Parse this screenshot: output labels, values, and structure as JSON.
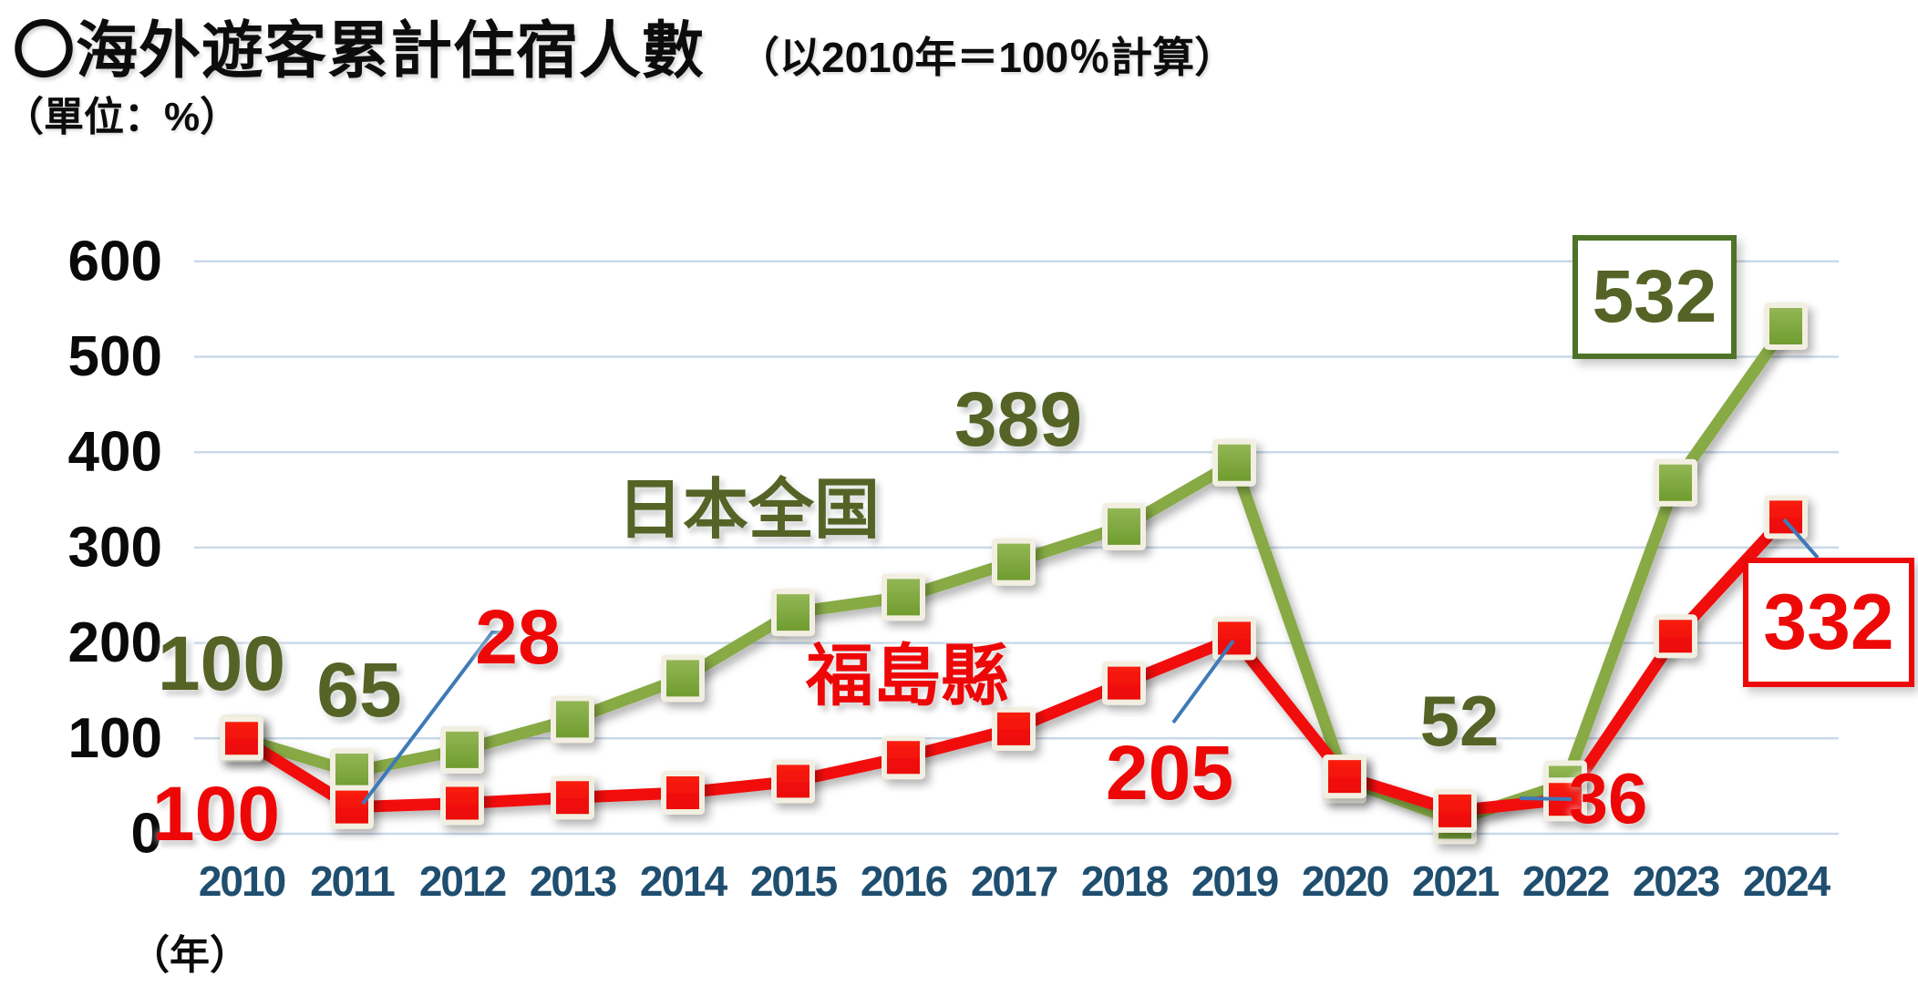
{
  "header": {
    "title": "〇海外遊客累計住宿人數",
    "subtitle": "（以2010年＝100％計算）",
    "unit_label": "（單位：%）"
  },
  "axes": {
    "x_unit_label": "（年）"
  },
  "chart_data": {
    "type": "line",
    "title": "海外遊客累計住宿人數（以2010年＝100％計算）",
    "categories": [
      "2010",
      "2011",
      "2012",
      "2013",
      "2014",
      "2015",
      "2016",
      "2017",
      "2018",
      "2019",
      "2020",
      "2021",
      "2022",
      "2023",
      "2024"
    ],
    "series": [
      {
        "name": "日本全国",
        "key": "national",
        "marker": "square",
        "values": [
          100,
          65,
          88,
          120,
          163,
          232,
          248,
          285,
          322,
          389,
          57,
          14,
          52,
          368,
          532
        ]
      },
      {
        "name": "福島縣",
        "key": "fukushima",
        "marker": "square",
        "values": [
          100,
          28,
          32,
          38,
          43,
          55,
          80,
          110,
          158,
          205,
          60,
          24,
          36,
          207,
          332
        ]
      }
    ],
    "ylim": [
      0,
      600
    ],
    "yticks": [
      0,
      100,
      200,
      300,
      400,
      500,
      600
    ],
    "xlabel": "年",
    "ylabel": "％",
    "grid": true,
    "legend_position": "inline-series-labels",
    "labeled_points": {
      "日本全国": {
        "2010": 100,
        "2011": 65,
        "2019": 389,
        "2022": 52,
        "2024": 532
      },
      "福島縣": {
        "2010": 100,
        "2011": 28,
        "2019": 205,
        "2022": 36,
        "2024": 332
      }
    }
  },
  "annotations": {
    "nat_2010": "100",
    "nat_2011": "65",
    "fuk_2011": "28",
    "fuk_2010": "100",
    "nat_series": "日本全国",
    "fuk_series": "福島縣",
    "nat_2019": "389",
    "fuk_2019": "205",
    "nat_2022": "52",
    "fuk_2022": "36",
    "nat_2024_boxed": "532",
    "fuk_2024_boxed": "332"
  },
  "colors": {
    "national_fill": "#7ba23c",
    "national_line": "#87aa45",
    "national_text": "#556326",
    "national_box_border": "#4d7328",
    "fukushima": "#f20d0d",
    "fukushima_text": "#ee0707",
    "marker_outline": "#f2efe2",
    "gridline": "#c9d9e8",
    "year_label": "#1f4e6f",
    "ytick_label": "#0a0a0a",
    "leader_line": "#3e7ab8",
    "background": "#ffffff"
  }
}
